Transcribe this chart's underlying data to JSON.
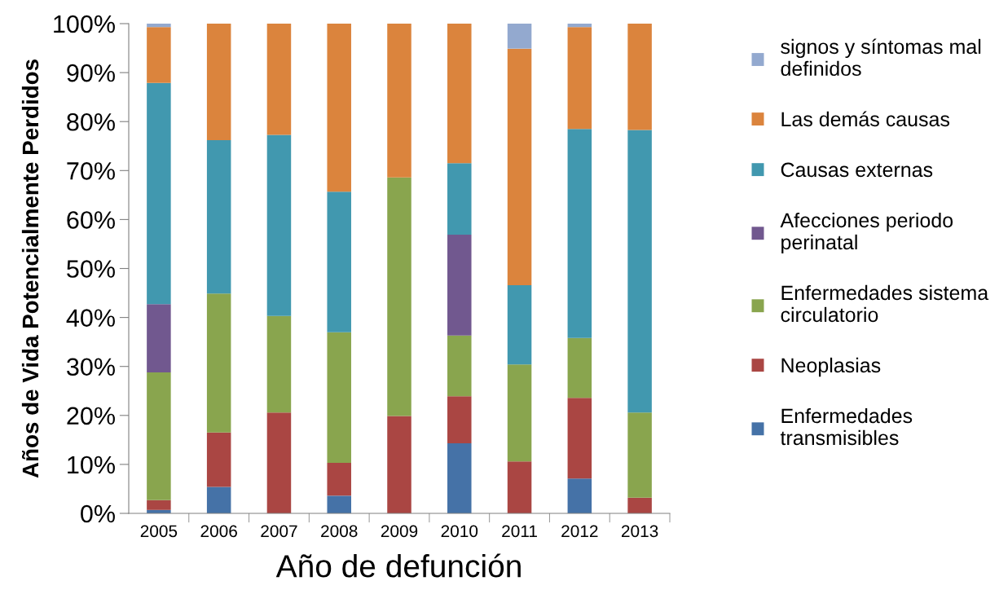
{
  "chart_data": {
    "type": "bar",
    "stacked": true,
    "xlabel": "Año de defunción",
    "ylabel": "Años de Vida Potencialmente Perdidos",
    "categories": [
      "2005",
      "2006",
      "2007",
      "2008",
      "2009",
      "2010",
      "2011",
      "2012",
      "2013"
    ],
    "ylim": [
      0,
      100
    ],
    "yticks": [
      {
        "value": 0,
        "label": "0%"
      },
      {
        "value": 10,
        "label": "10%"
      },
      {
        "value": 20,
        "label": "20%"
      },
      {
        "value": 30,
        "label": "30%"
      },
      {
        "value": 40,
        "label": "40%"
      },
      {
        "value": 50,
        "label": "50%"
      },
      {
        "value": 60,
        "label": "60%"
      },
      {
        "value": 70,
        "label": "70%"
      },
      {
        "value": 80,
        "label": "80%"
      },
      {
        "value": 90,
        "label": "90%"
      },
      {
        "value": 100,
        "label": "100%"
      }
    ],
    "grid": false,
    "legend": "right",
    "series": [
      {
        "name": "Enfermedades\ntransmisibles",
        "color": "#4572a7",
        "values": [
          0.7,
          5.4,
          0,
          3.6,
          0,
          14.3,
          0,
          7.1,
          0
        ]
      },
      {
        "name": "Neoplasias",
        "color": "#aa4643",
        "values": [
          2.0,
          11.1,
          20.6,
          6.7,
          19.9,
          9.6,
          10.6,
          16.5,
          3.2
        ]
      },
      {
        "name": "Enfermedades sistema\ncirculatorio",
        "color": "#89a54e",
        "values": [
          26.1,
          28.4,
          19.7,
          26.7,
          48.7,
          12.4,
          19.8,
          12.2,
          17.4
        ]
      },
      {
        "name": "Afecciones periodo\nperinatal",
        "color": "#71588f",
        "values": [
          13.9,
          0,
          0,
          0,
          0,
          20.6,
          0,
          0,
          0
        ]
      },
      {
        "name": "Causas externas",
        "color": "#4198af",
        "values": [
          45.2,
          31.3,
          37.0,
          28.7,
          0,
          14.6,
          16.2,
          42.7,
          57.7
        ]
      },
      {
        "name": "Las demás causas",
        "color": "#db843d",
        "values": [
          11.4,
          23.8,
          22.7,
          34.3,
          31.4,
          28.5,
          48.3,
          20.8,
          21.7
        ]
      },
      {
        "name": "signos y síntomas mal\ndefinidos",
        "color": "#93a9cf",
        "values": [
          0.7,
          0,
          0,
          0,
          0,
          0,
          5.1,
          0.7,
          0
        ]
      }
    ]
  }
}
